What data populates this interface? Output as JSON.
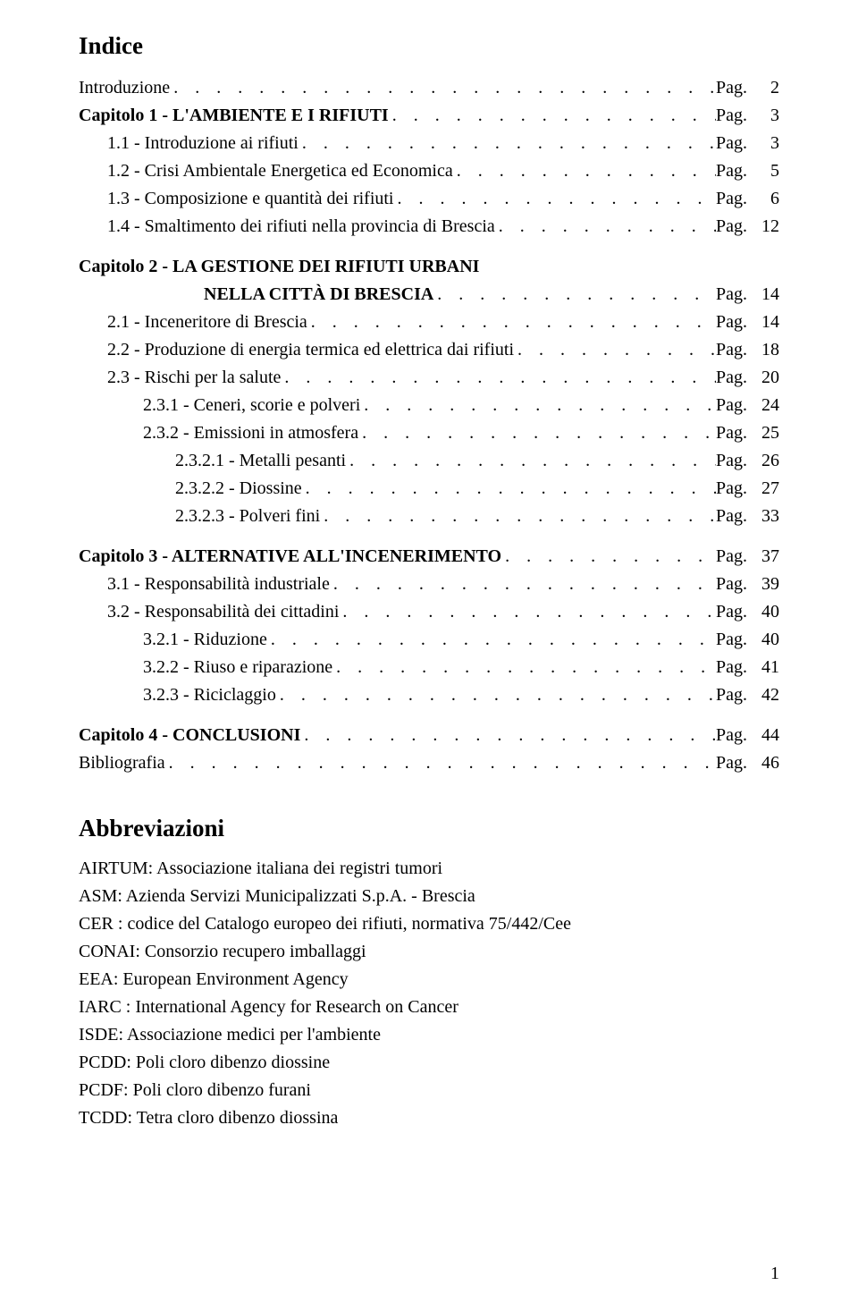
{
  "title": "Indice",
  "page_label": "Pag.",
  "colors": {
    "background": "#ffffff",
    "text": "#000000"
  },
  "typography": {
    "font_family": "Palatino Linotype",
    "title_fontsize": 27,
    "body_fontsize": 20,
    "line_height": 1.55
  },
  "toc": [
    {
      "text": "Introduzione",
      "page": "2",
      "bold": false,
      "indent": 0,
      "gap_after": false
    },
    {
      "text": "Capitolo 1 - L'AMBIENTE E I RIFIUTI",
      "page": "3",
      "bold": true,
      "indent": 0,
      "gap_after": false
    },
    {
      "text": "1.1 - Introduzione ai rifiuti",
      "page": "3",
      "bold": false,
      "indent": 1,
      "gap_after": false
    },
    {
      "text": "1.2 - Crisi Ambientale Energetica ed Economica",
      "page": "5",
      "bold": false,
      "indent": 1,
      "gap_after": false
    },
    {
      "text": "1.3 - Composizione e quantità dei rifiuti",
      "page": "6",
      "bold": false,
      "indent": 1,
      "gap_after": false
    },
    {
      "text": "1.4 - Smaltimento dei rifiuti nella provincia di Brescia",
      "page": "12",
      "bold": false,
      "indent": 1,
      "gap_after": true
    },
    {
      "text": "Capitolo 2 - LA GESTIONE DEI RIFIUTI URBANI",
      "bold": true,
      "indent": 0,
      "heading_only": true
    },
    {
      "text": "NELLA CITTÀ DI BRESCIA",
      "page": "14",
      "bold": true,
      "indent": "continue",
      "gap_after": false
    },
    {
      "text": "2.1 - Inceneritore di Brescia",
      "page": "14",
      "bold": false,
      "indent": 1,
      "gap_after": false
    },
    {
      "text": "2.2 - Produzione di energia termica ed elettrica dai rifiuti",
      "page": "18",
      "bold": false,
      "indent": 1,
      "gap_after": false
    },
    {
      "text": "2.3 - Rischi per la salute",
      "page": "20",
      "bold": false,
      "indent": 1,
      "gap_after": false
    },
    {
      "text": "2.3.1 - Ceneri, scorie e polveri",
      "page": "24",
      "bold": false,
      "indent": 2,
      "gap_after": false
    },
    {
      "text": "2.3.2 - Emissioni in atmosfera",
      "page": "25",
      "bold": false,
      "indent": 2,
      "gap_after": false
    },
    {
      "text": "2.3.2.1 - Metalli pesanti",
      "page": "26",
      "bold": false,
      "indent": 3,
      "gap_after": false
    },
    {
      "text": "2.3.2.2 - Diossine",
      "page": "27",
      "bold": false,
      "indent": 3,
      "gap_after": false
    },
    {
      "text": "2.3.2.3 - Polveri fini",
      "page": "33",
      "bold": false,
      "indent": 3,
      "gap_after": true
    },
    {
      "text": "Capitolo 3 - ALTERNATIVE ALL'INCENERIMENTO",
      "page": "37",
      "bold": true,
      "indent": 0,
      "gap_after": false
    },
    {
      "text": "3.1 - Responsabilità industriale",
      "page": "39",
      "bold": false,
      "indent": 1,
      "gap_after": false
    },
    {
      "text": "3.2 - Responsabilità dei cittadini",
      "page": "40",
      "bold": false,
      "indent": 1,
      "gap_after": false
    },
    {
      "text": "3.2.1 - Riduzione",
      "page": "40",
      "bold": false,
      "indent": 2,
      "gap_after": false
    },
    {
      "text": "3.2.2 - Riuso e riparazione",
      "page": "41",
      "bold": false,
      "indent": 2,
      "gap_after": false
    },
    {
      "text": "3.2.3 - Riciclaggio",
      "page": "42",
      "bold": false,
      "indent": 2,
      "gap_after": true
    },
    {
      "text": "Capitolo 4 - CONCLUSIONI",
      "page": "44",
      "bold": true,
      "indent": 0,
      "gap_after": false
    },
    {
      "text": "Bibliografia",
      "page": "46",
      "bold": false,
      "indent": 0,
      "gap_after": true
    }
  ],
  "abbrev_title": "Abbreviazioni",
  "abbreviations": [
    "AIRTUM: Associazione italiana dei registri tumori",
    "ASM: Azienda Servizi Municipalizzati S.p.A. - Brescia",
    "CER : codice del Catalogo europeo dei rifiuti, normativa 75/442/Cee",
    "CONAI: Consorzio recupero imballaggi",
    "EEA: European Environment Agency",
    "IARC : International Agency for Research on Cancer",
    "ISDE: Associazione medici per l'ambiente",
    "PCDD: Poli cloro dibenzo diossine",
    "PCDF: Poli cloro dibenzo furani",
    "TCDD: Tetra cloro dibenzo diossina"
  ],
  "footer_page_number": "1",
  "dots": ". . . . . . . . . . . . . . . . . . . . . . . . . . . . . . . . . . . . . . . . . . . . . . . . . . . . . . . . . . . . . . . . . . . . . . . . . . . . . . . . . . . . . . . . . . . . . . . . . . . . . . . . . . . . . . . . . . . . "
}
